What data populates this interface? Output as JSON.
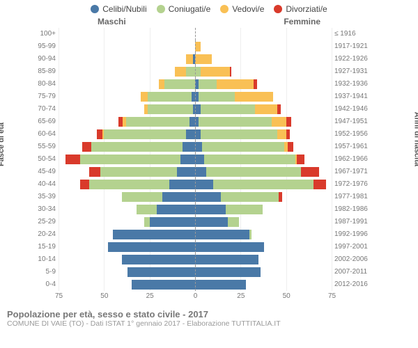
{
  "legend": {
    "items": [
      {
        "label": "Celibi/Nubili",
        "color": "#4a79a7"
      },
      {
        "label": "Coniugati/e",
        "color": "#b4d28f"
      },
      {
        "label": "Vedovi/e",
        "color": "#f9c055"
      },
      {
        "label": "Divorziati/e",
        "color": "#d93a2b"
      }
    ]
  },
  "side_labels": {
    "left": "Maschi",
    "right": "Femmine"
  },
  "yaxis_titles": {
    "left": "Fasce di età",
    "right": "Anni di nascita"
  },
  "max_value": 75,
  "xticks": [
    75,
    50,
    25,
    0,
    25,
    50,
    75
  ],
  "colors": {
    "celibi": "#4a79a7",
    "coniugati": "#b4d28f",
    "vedovi": "#f9c055",
    "divorziati": "#d93a2b",
    "grid": "#eeeeee",
    "center_line": "#999999",
    "background": "#ffffff"
  },
  "footer": {
    "title": "Popolazione per età, sesso e stato civile - 2017",
    "sub": "COMUNE DI VAIE (TO) - Dati ISTAT 1° gennaio 2017 - Elaborazione TUTTITALIA.IT"
  },
  "rows": [
    {
      "age": "100+",
      "birth": "≤ 1916",
      "m": [
        0,
        0,
        0,
        0
      ],
      "f": [
        0,
        0,
        0,
        0
      ]
    },
    {
      "age": "95-99",
      "birth": "1917-1921",
      "m": [
        0,
        0,
        0,
        0
      ],
      "f": [
        0,
        0,
        3,
        0
      ]
    },
    {
      "age": "90-94",
      "birth": "1922-1926",
      "m": [
        1,
        0,
        4,
        0
      ],
      "f": [
        0,
        0,
        9,
        0
      ]
    },
    {
      "age": "85-89",
      "birth": "1927-1931",
      "m": [
        0,
        5,
        6,
        0
      ],
      "f": [
        0,
        3,
        16,
        1
      ]
    },
    {
      "age": "80-84",
      "birth": "1932-1936",
      "m": [
        0,
        17,
        3,
        0
      ],
      "f": [
        2,
        10,
        20,
        2
      ]
    },
    {
      "age": "75-79",
      "birth": "1937-1941",
      "m": [
        2,
        24,
        4,
        0
      ],
      "f": [
        2,
        20,
        21,
        0
      ]
    },
    {
      "age": "70-74",
      "birth": "1942-1946",
      "m": [
        1,
        25,
        2,
        0
      ],
      "f": [
        3,
        30,
        12,
        2
      ]
    },
    {
      "age": "65-69",
      "birth": "1947-1951",
      "m": [
        3,
        35,
        2,
        2
      ],
      "f": [
        2,
        40,
        8,
        3
      ]
    },
    {
      "age": "60-64",
      "birth": "1952-1956",
      "m": [
        5,
        45,
        1,
        3
      ],
      "f": [
        3,
        42,
        5,
        2
      ]
    },
    {
      "age": "55-59",
      "birth": "1957-1961",
      "m": [
        7,
        50,
        0,
        5
      ],
      "f": [
        4,
        45,
        2,
        3
      ]
    },
    {
      "age": "50-54",
      "birth": "1962-1966",
      "m": [
        8,
        55,
        0,
        8
      ],
      "f": [
        5,
        50,
        1,
        4
      ]
    },
    {
      "age": "45-49",
      "birth": "1967-1971",
      "m": [
        10,
        42,
        0,
        6
      ],
      "f": [
        6,
        52,
        0,
        10
      ]
    },
    {
      "age": "40-44",
      "birth": "1972-1976",
      "m": [
        14,
        44,
        0,
        5
      ],
      "f": [
        10,
        55,
        0,
        7
      ]
    },
    {
      "age": "35-39",
      "birth": "1977-1981",
      "m": [
        18,
        22,
        0,
        0
      ],
      "f": [
        14,
        32,
        0,
        2
      ]
    },
    {
      "age": "30-34",
      "birth": "1982-1986",
      "m": [
        21,
        11,
        0,
        0
      ],
      "f": [
        17,
        20,
        0,
        0
      ]
    },
    {
      "age": "25-29",
      "birth": "1987-1991",
      "m": [
        25,
        3,
        0,
        0
      ],
      "f": [
        18,
        6,
        0,
        0
      ]
    },
    {
      "age": "20-24",
      "birth": "1992-1996",
      "m": [
        45,
        0,
        0,
        0
      ],
      "f": [
        30,
        1,
        0,
        0
      ]
    },
    {
      "age": "15-19",
      "birth": "1997-2001",
      "m": [
        48,
        0,
        0,
        0
      ],
      "f": [
        38,
        0,
        0,
        0
      ]
    },
    {
      "age": "10-14",
      "birth": "2002-2006",
      "m": [
        40,
        0,
        0,
        0
      ],
      "f": [
        35,
        0,
        0,
        0
      ]
    },
    {
      "age": "5-9",
      "birth": "2007-2011",
      "m": [
        37,
        0,
        0,
        0
      ],
      "f": [
        36,
        0,
        0,
        0
      ]
    },
    {
      "age": "0-4",
      "birth": "2012-2016",
      "m": [
        35,
        0,
        0,
        0
      ],
      "f": [
        28,
        0,
        0,
        0
      ]
    }
  ]
}
